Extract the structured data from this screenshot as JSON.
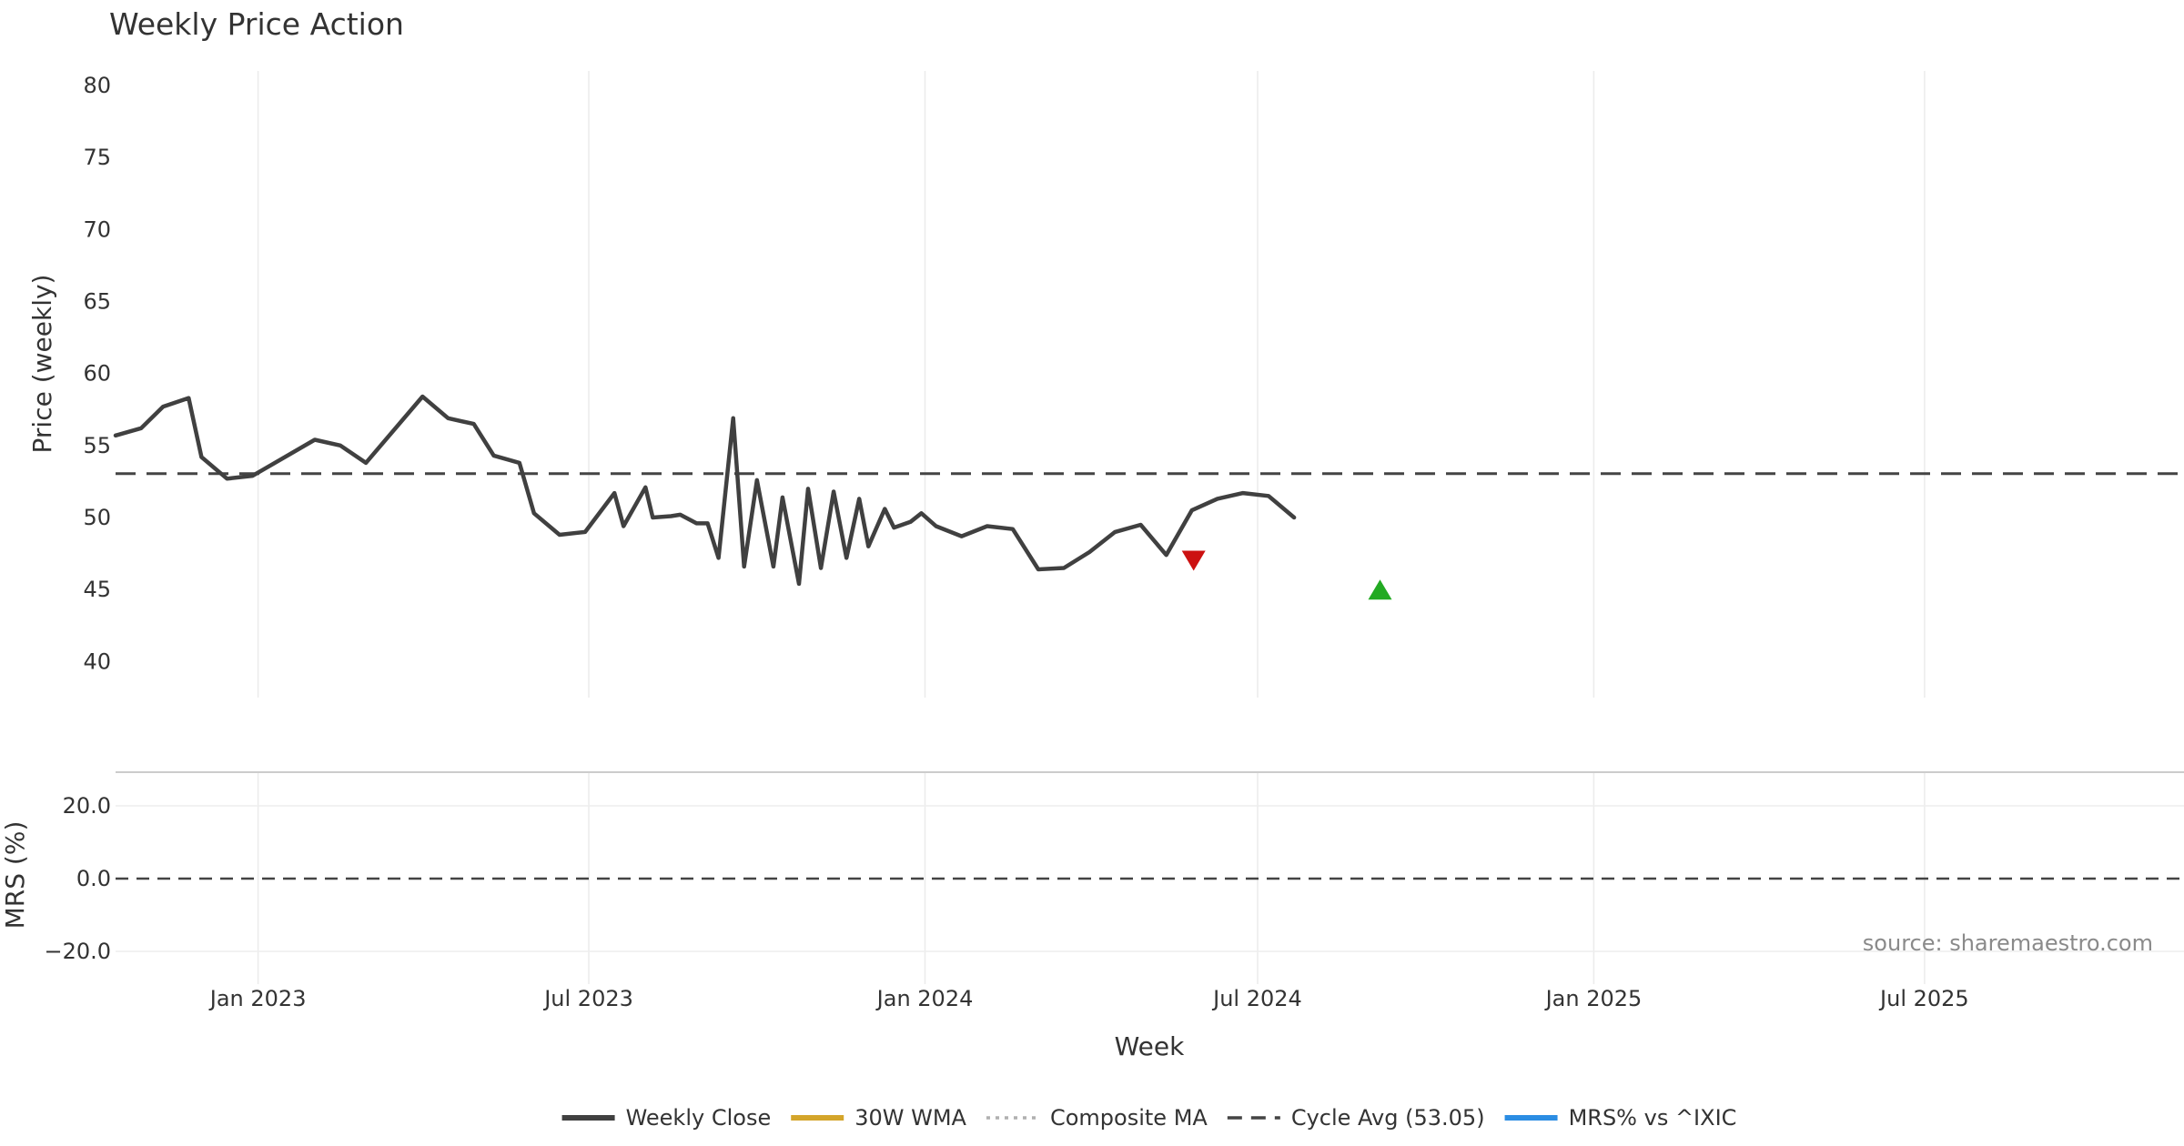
{
  "chart_data": {
    "type": "line",
    "title": "Weekly Price Action",
    "xlabel": "Week",
    "source_note": "source: sharemaestro.com",
    "x_ticks": [
      {
        "date": "2023-01-01",
        "label": "Jan 2023"
      },
      {
        "date": "2023-07-01",
        "label": "Jul 2023"
      },
      {
        "date": "2024-01-01",
        "label": "Jan 2024"
      },
      {
        "date": "2024-07-01",
        "label": "Jul 2024"
      },
      {
        "date": "2025-01-01",
        "label": "Jan 2025"
      },
      {
        "date": "2025-07-01",
        "label": "Jul 2025"
      }
    ],
    "x_range": [
      "2022-10-15",
      "2025-11-20"
    ],
    "panels": {
      "price": {
        "ylabel": "Price (weekly)",
        "ylim": [
          37.5,
          80.5
        ],
        "y_ticks": [
          "40",
          "45",
          "50",
          "55",
          "60",
          "65",
          "70",
          "75",
          "80"
        ],
        "cycle_avg": 53.05,
        "signals": [
          {
            "type": "sell",
            "date": "2024-05-27",
            "value": 47.0,
            "color": "#cc1111"
          },
          {
            "type": "buy",
            "date": "2024-09-06",
            "value": 45.0,
            "color": "#22aa22"
          }
        ]
      },
      "mrs": {
        "ylabel": "MRS (%)",
        "ylim": [
          -29,
          29
        ],
        "y_ticks": [
          "20.0",
          "0.0",
          "−20.0"
        ],
        "zero_line": 0
      }
    },
    "series": [
      {
        "name": "Weekly Close",
        "panel": "price",
        "color": "#404040",
        "style": "solid",
        "points": [
          [
            "2022-10-15",
            55.7
          ],
          [
            "2022-10-29",
            56.2
          ],
          [
            "2022-11-10",
            57.7
          ],
          [
            "2022-11-24",
            58.3
          ],
          [
            "2022-12-01",
            54.2
          ],
          [
            "2022-12-15",
            52.7
          ],
          [
            "2022-12-29",
            52.9
          ],
          [
            "2023-02-01",
            55.4
          ],
          [
            "2023-02-15",
            55.0
          ],
          [
            "2023-03-01",
            53.8
          ],
          [
            "2023-04-01",
            58.4
          ],
          [
            "2023-04-15",
            56.9
          ],
          [
            "2023-04-29",
            56.5
          ],
          [
            "2023-05-10",
            54.3
          ],
          [
            "2023-05-24",
            53.8
          ],
          [
            "2023-06-01",
            50.3
          ],
          [
            "2023-06-15",
            48.8
          ],
          [
            "2023-06-29",
            49.0
          ],
          [
            "2023-07-15",
            51.7
          ],
          [
            "2023-08-01",
            52.1
          ],
          [
            "2023-08-15",
            50.1
          ],
          [
            "2023-08-29",
            49.6
          ],
          [
            "2023-09-10",
            47.2
          ],
          [
            "2023-09-24",
            46.6
          ],
          [
            "2023-10-10",
            46.6
          ],
          [
            "2023-10-24",
            45.4
          ],
          [
            "2023-11-05",
            46.5
          ],
          [
            "2023-11-19",
            47.2
          ],
          [
            "2023-12-01",
            48.0
          ],
          [
            "2023-12-15",
            49.3
          ],
          [
            "2023-12-30",
            50.3
          ],
          [
            "2023-07-20",
            49.4
          ],
          [
            "2023-08-05",
            50.0
          ],
          [
            "2023-08-20",
            50.2
          ],
          [
            "2023-09-04",
            49.6
          ],
          [
            "2023-09-18",
            56.9
          ],
          [
            "2023-10-01",
            52.6
          ],
          [
            "2023-10-15",
            51.4
          ],
          [
            "2023-10-29",
            52.0
          ],
          [
            "2023-11-12",
            51.8
          ],
          [
            "2023-11-26",
            51.3
          ],
          [
            "2023-12-10",
            50.6
          ],
          [
            "2023-12-24",
            49.7
          ],
          [
            "2024-01-07",
            49.4
          ],
          [
            "2024-01-21",
            48.7
          ],
          [
            "2024-02-04",
            49.4
          ],
          [
            "2024-02-18",
            49.2
          ],
          [
            "2024-03-03",
            46.4
          ],
          [
            "2024-03-17",
            46.5
          ],
          [
            "2024-03-31",
            47.6
          ],
          [
            "2024-04-14",
            49.0
          ],
          [
            "2024-04-28",
            49.5
          ],
          [
            "2024-05-12",
            47.4
          ],
          [
            "2024-05-26",
            50.5
          ],
          [
            "2024-06-09",
            51.3
          ],
          [
            "2024-06-23",
            51.7
          ],
          [
            "2024-07-07",
            51.5
          ],
          [
            "2024-07-21",
            50.0
          ]
        ]
      },
      {
        "name": "30W WMA",
        "panel": "price",
        "color": "#d4a52a",
        "style": "solid",
        "points": []
      },
      {
        "name": "Composite MA",
        "panel": "price",
        "color": "#b0b0b0",
        "style": "dotted",
        "points": []
      },
      {
        "name": "Cycle Avg (53.05)",
        "panel": "price",
        "color": "#444444",
        "style": "dashed",
        "value": 53.05
      },
      {
        "name": "MRS% vs ^IXIC",
        "panel": "mrs",
        "color": "#2b8de3",
        "style": "solid",
        "points": []
      }
    ]
  }
}
